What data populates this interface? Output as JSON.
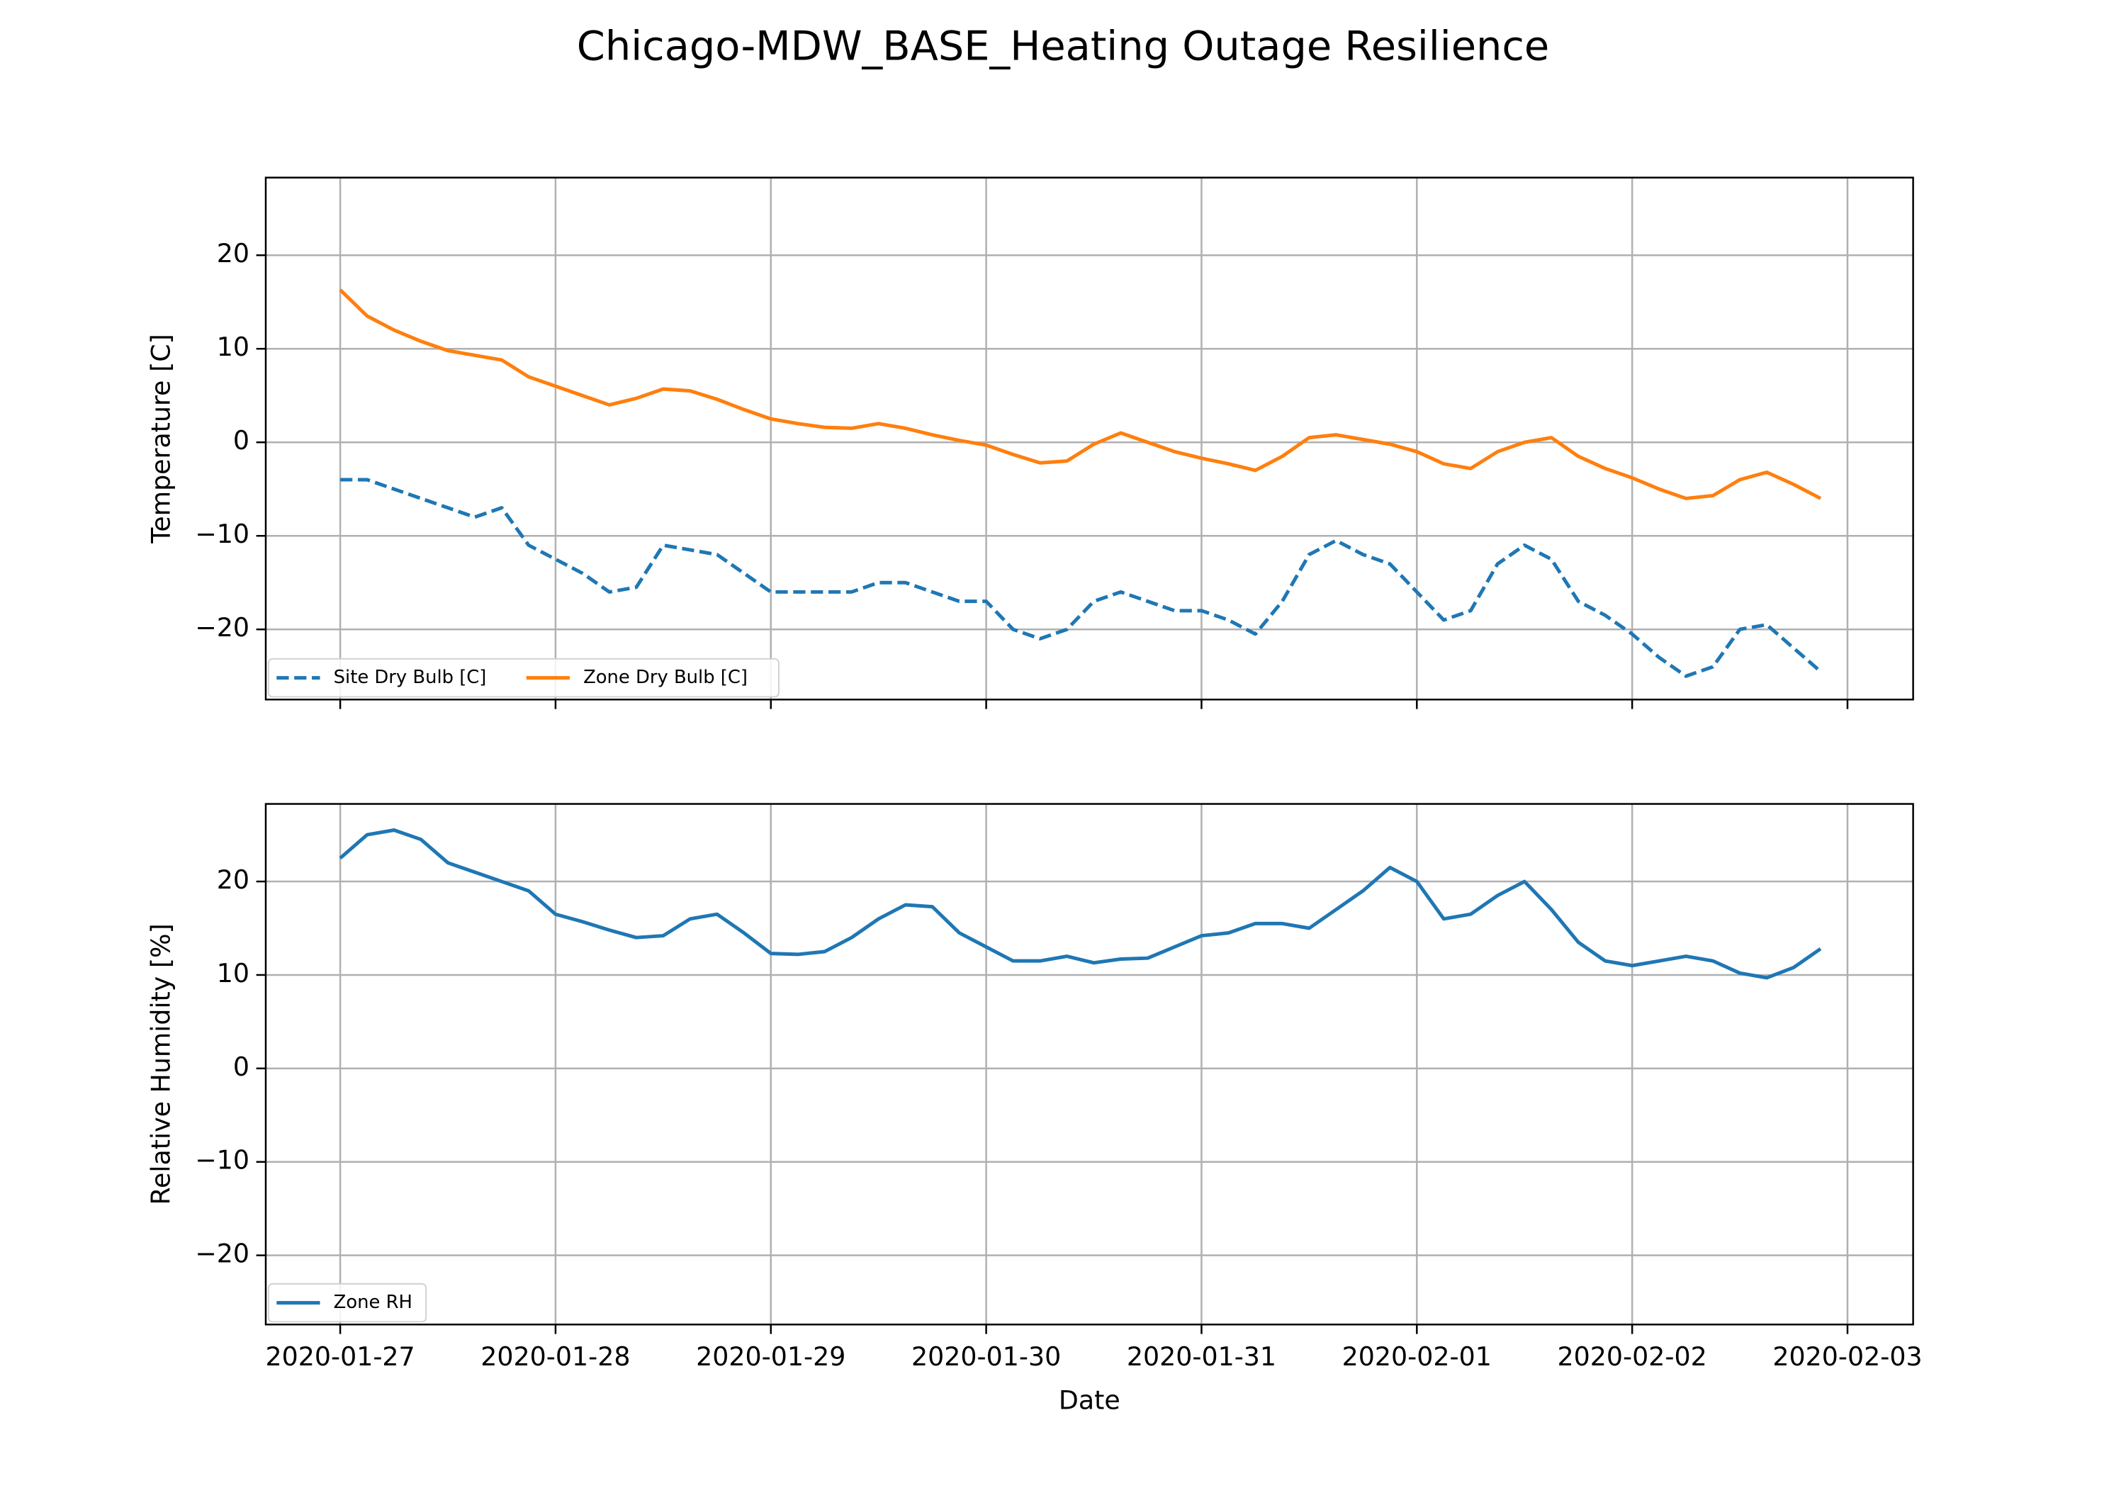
{
  "title": "Chicago-MDW_BASE_Heating Outage Resilience",
  "chart_data": [
    {
      "type": "line",
      "ylabel": "Temperature [C]",
      "x": [
        "2020-01-27T00:00",
        "2020-01-27T03:00",
        "2020-01-27T06:00",
        "2020-01-27T09:00",
        "2020-01-27T12:00",
        "2020-01-27T15:00",
        "2020-01-27T18:00",
        "2020-01-27T21:00",
        "2020-01-28T00:00",
        "2020-01-28T03:00",
        "2020-01-28T06:00",
        "2020-01-28T09:00",
        "2020-01-28T12:00",
        "2020-01-28T15:00",
        "2020-01-28T18:00",
        "2020-01-28T21:00",
        "2020-01-29T00:00",
        "2020-01-29T03:00",
        "2020-01-29T06:00",
        "2020-01-29T09:00",
        "2020-01-29T12:00",
        "2020-01-29T15:00",
        "2020-01-29T18:00",
        "2020-01-29T21:00",
        "2020-01-30T00:00",
        "2020-01-30T03:00",
        "2020-01-30T06:00",
        "2020-01-30T09:00",
        "2020-01-30T12:00",
        "2020-01-30T15:00",
        "2020-01-30T18:00",
        "2020-01-30T21:00",
        "2020-01-31T00:00",
        "2020-01-31T03:00",
        "2020-01-31T06:00",
        "2020-01-31T09:00",
        "2020-01-31T12:00",
        "2020-01-31T15:00",
        "2020-01-31T18:00",
        "2020-01-31T21:00",
        "2020-02-01T00:00",
        "2020-02-01T03:00",
        "2020-02-01T06:00",
        "2020-02-01T09:00",
        "2020-02-01T12:00",
        "2020-02-01T15:00",
        "2020-02-01T18:00",
        "2020-02-01T21:00",
        "2020-02-02T00:00",
        "2020-02-02T03:00",
        "2020-02-02T06:00",
        "2020-02-02T09:00",
        "2020-02-02T12:00",
        "2020-02-02T15:00",
        "2020-02-02T18:00",
        "2020-02-02T21:00"
      ],
      "series": [
        {
          "name": "Site Dry Bulb [C]",
          "color": "#1f77b4",
          "dashed": true,
          "values": [
            -4,
            -4,
            -5,
            -6,
            -7,
            -8,
            -7,
            -11,
            -12.5,
            -14,
            -16,
            -15.5,
            -11,
            -11.5,
            -12,
            -14,
            -16,
            -16,
            -16,
            -16,
            -15,
            -15,
            -16,
            -17,
            -17,
            -20,
            -21,
            -20,
            -17,
            -16,
            -17,
            -18,
            -18,
            -19,
            -20.5,
            -17,
            -12,
            -10.5,
            -12,
            -13,
            -16,
            -19,
            -18,
            -13,
            -11,
            -12.5,
            -17,
            -18.5,
            -20.5,
            -23,
            -25,
            -24,
            -20,
            -19.5,
            -22,
            -24.5
          ]
        },
        {
          "name": "Zone Dry Bulb [C]",
          "color": "#ff7f0e",
          "dashed": false,
          "values": [
            16.3,
            13.5,
            12,
            10.8,
            9.8,
            9.3,
            8.8,
            7,
            6,
            5,
            4,
            4.7,
            5.7,
            5.5,
            4.6,
            3.5,
            2.5,
            2,
            1.6,
            1.5,
            2,
            1.5,
            0.8,
            0.2,
            -0.3,
            -1.3,
            -2.2,
            -2,
            -0.2,
            1,
            0,
            -1,
            -1.7,
            -2.3,
            -3,
            -1.5,
            0.5,
            0.8,
            0.3,
            -0.2,
            -1,
            -2.3,
            -2.8,
            -1,
            0,
            0.5,
            -1.5,
            -2.8,
            -3.8,
            -5,
            -6,
            -5.7,
            -4,
            -3.2,
            -4.5,
            -6
          ]
        }
      ],
      "xlim": [
        "2020-01-26T15:42",
        "2020-02-03T07:19"
      ],
      "xticks": [
        "2020-01-27",
        "2020-01-28",
        "2020-01-29",
        "2020-01-30",
        "2020-01-31",
        "2020-02-01",
        "2020-02-02",
        "2020-02-03"
      ],
      "xtick_labels": false,
      "ylim": [
        -27.5,
        28.3
      ],
      "yticks": [
        {
          "value": -20,
          "label": "−20"
        },
        {
          "value": -10,
          "label": "−10"
        },
        0,
        10,
        20
      ],
      "grid": true,
      "legend": "lower left",
      "legend_columns": 2
    },
    {
      "type": "line",
      "ylabel": "Relative Humidity [%]",
      "xlabel": "Date",
      "x": [
        "2020-01-27T00:00",
        "2020-01-27T03:00",
        "2020-01-27T06:00",
        "2020-01-27T09:00",
        "2020-01-27T12:00",
        "2020-01-27T15:00",
        "2020-01-27T18:00",
        "2020-01-27T21:00",
        "2020-01-28T00:00",
        "2020-01-28T03:00",
        "2020-01-28T06:00",
        "2020-01-28T09:00",
        "2020-01-28T12:00",
        "2020-01-28T15:00",
        "2020-01-28T18:00",
        "2020-01-28T21:00",
        "2020-01-29T00:00",
        "2020-01-29T03:00",
        "2020-01-29T06:00",
        "2020-01-29T09:00",
        "2020-01-29T12:00",
        "2020-01-29T15:00",
        "2020-01-29T18:00",
        "2020-01-29T21:00",
        "2020-01-30T00:00",
        "2020-01-30T03:00",
        "2020-01-30T06:00",
        "2020-01-30T09:00",
        "2020-01-30T12:00",
        "2020-01-30T15:00",
        "2020-01-30T18:00",
        "2020-01-30T21:00",
        "2020-01-31T00:00",
        "2020-01-31T03:00",
        "2020-01-31T06:00",
        "2020-01-31T09:00",
        "2020-01-31T12:00",
        "2020-01-31T15:00",
        "2020-01-31T18:00",
        "2020-01-31T21:00",
        "2020-02-01T00:00",
        "2020-02-01T03:00",
        "2020-02-01T06:00",
        "2020-02-01T09:00",
        "2020-02-01T12:00",
        "2020-02-01T15:00",
        "2020-02-01T18:00",
        "2020-02-01T21:00",
        "2020-02-02T00:00",
        "2020-02-02T03:00",
        "2020-02-02T06:00",
        "2020-02-02T09:00",
        "2020-02-02T12:00",
        "2020-02-02T15:00",
        "2020-02-02T18:00",
        "2020-02-02T21:00"
      ],
      "series": [
        {
          "name": "Zone RH",
          "color": "#1f77b4",
          "dashed": false,
          "values": [
            22.5,
            25,
            25.5,
            24.5,
            22,
            21,
            20,
            19,
            16.5,
            15.7,
            14.8,
            14,
            14.2,
            16,
            16.5,
            14.5,
            12.3,
            12.2,
            12.5,
            14,
            16,
            17.5,
            17.3,
            14.5,
            13,
            11.5,
            11.5,
            12,
            11.3,
            11.7,
            11.8,
            13,
            14.2,
            14.5,
            15.5,
            15.5,
            15,
            17,
            19,
            21.5,
            20,
            16,
            16.5,
            18.5,
            20,
            17,
            13.5,
            11.5,
            11,
            11.5,
            12,
            11.5,
            10.2,
            9.7,
            10.8,
            12.8
          ]
        }
      ],
      "xlim": [
        "2020-01-26T15:42",
        "2020-02-03T07:19"
      ],
      "xticks": [
        "2020-01-27",
        "2020-01-28",
        "2020-01-29",
        "2020-01-30",
        "2020-01-31",
        "2020-02-01",
        "2020-02-02",
        "2020-02-03"
      ],
      "xtick_labels": true,
      "ylim": [
        -27.4,
        28.3
      ],
      "yticks": [
        {
          "value": -20,
          "label": "−20"
        },
        {
          "value": -10,
          "label": "−10"
        },
        0,
        10,
        20
      ],
      "grid": true,
      "legend": "lower left",
      "legend_columns": 1
    }
  ]
}
